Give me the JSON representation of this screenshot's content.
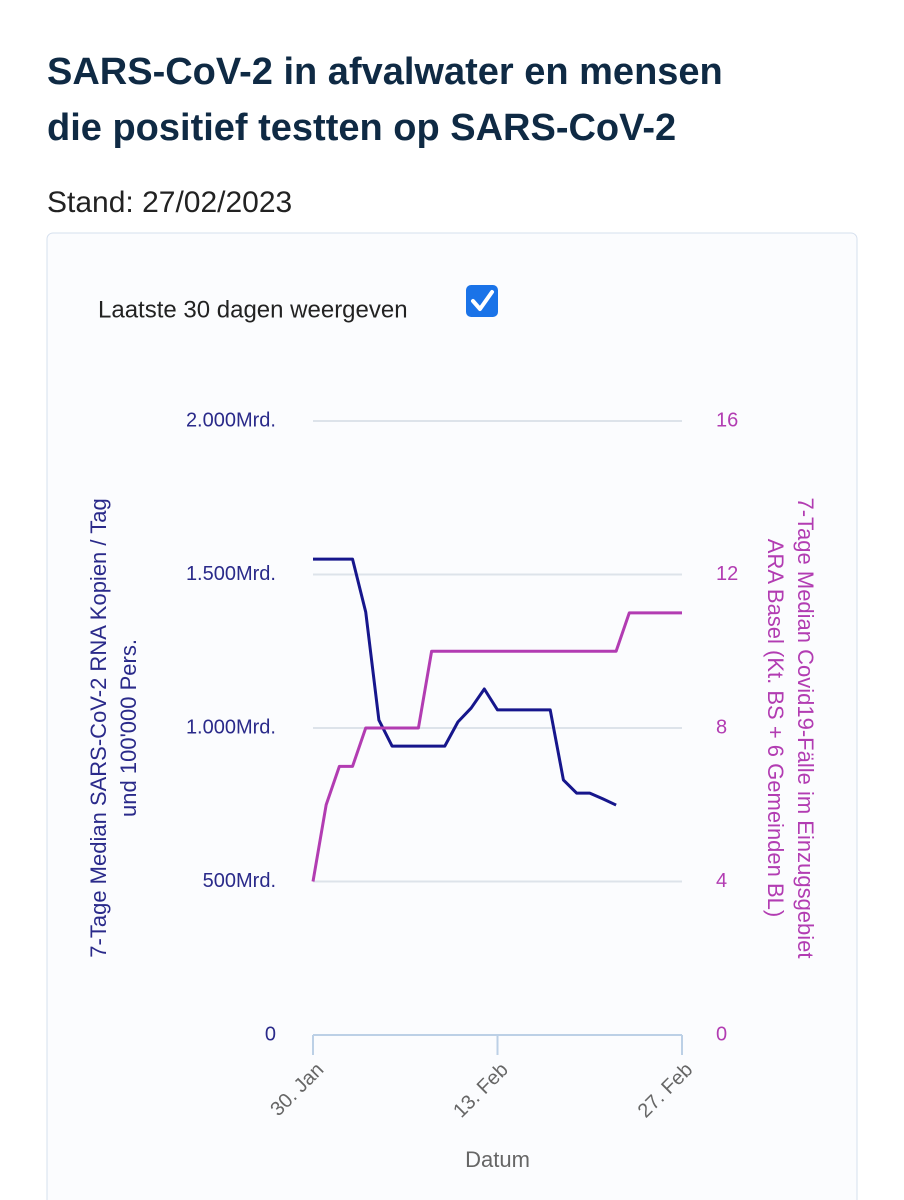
{
  "header": {
    "title": [
      "SARS-CoV-2 in afvalwater en mensen",
      "die positief testten op SARS-CoV-2"
    ],
    "subtitle": "Stand: 27/02/2023"
  },
  "controls": {
    "checkbox_label": "Laatste 30 dagen weergeven",
    "checked": true
  },
  "chart_data": {
    "type": "line",
    "x": [
      "30. Jan",
      "31. Jan",
      "1. Feb",
      "2. Feb",
      "3. Feb",
      "4. Feb",
      "5. Feb",
      "6. Feb",
      "7. Feb",
      "8. Feb",
      "9. Feb",
      "10. Feb",
      "11. Feb",
      "12. Feb",
      "13. Feb",
      "14. Feb",
      "15. Feb",
      "16. Feb",
      "17. Feb",
      "18. Feb",
      "19. Feb",
      "20. Feb",
      "21. Feb",
      "22. Feb",
      "23. Feb",
      "24. Feb",
      "25. Feb",
      "26. Feb",
      "27. Feb"
    ],
    "xticks": [
      "30. Jan",
      "13. Feb",
      "27. Feb"
    ],
    "xlabel": "Datum",
    "ylabel": [
      "7-Tage Median SARS-CoV-2 RNA Kopien / Tag",
      "und 100'000 Pers."
    ],
    "y2label": [
      "7-Tage Median Covid19-Fälle im Einzugsgebiet",
      "ARA Basel (Kt. BS + 6 Gemeinden BL)"
    ],
    "ylim": [
      0,
      2000
    ],
    "yticks": [
      0,
      {
        "value": 500,
        "label": "500Mrd."
      },
      {
        "value": 1000,
        "label": "1.000Mrd."
      },
      {
        "value": 1500,
        "label": "1.500Mrd."
      },
      {
        "value": 2000,
        "label": "2.000Mrd."
      }
    ],
    "y2lim": [
      0,
      16
    ],
    "y2ticks": [
      0,
      4,
      8,
      12,
      16
    ],
    "grid": true,
    "series": [
      {
        "name": "SARS-CoV-2 RNA",
        "color": "#16168c",
        "axis": "y",
        "values": [
          1550,
          1550,
          1550,
          1550,
          1378,
          1026,
          941,
          941,
          941,
          941,
          941,
          1020,
          1065,
          1127,
          1059,
          1059,
          1059,
          1059,
          1059,
          831,
          788,
          788,
          769,
          749,
          null,
          null,
          null,
          null,
          null
        ]
      },
      {
        "name": "Covid19-Fälle",
        "color": "#b23cb2",
        "axis": "y2",
        "values": [
          4,
          6,
          7,
          7,
          8,
          8,
          8,
          8,
          8,
          10,
          10,
          10,
          10,
          10,
          10,
          10,
          10,
          10,
          10,
          10,
          10,
          10,
          10,
          10,
          11,
          11,
          11,
          11,
          11
        ]
      }
    ]
  }
}
